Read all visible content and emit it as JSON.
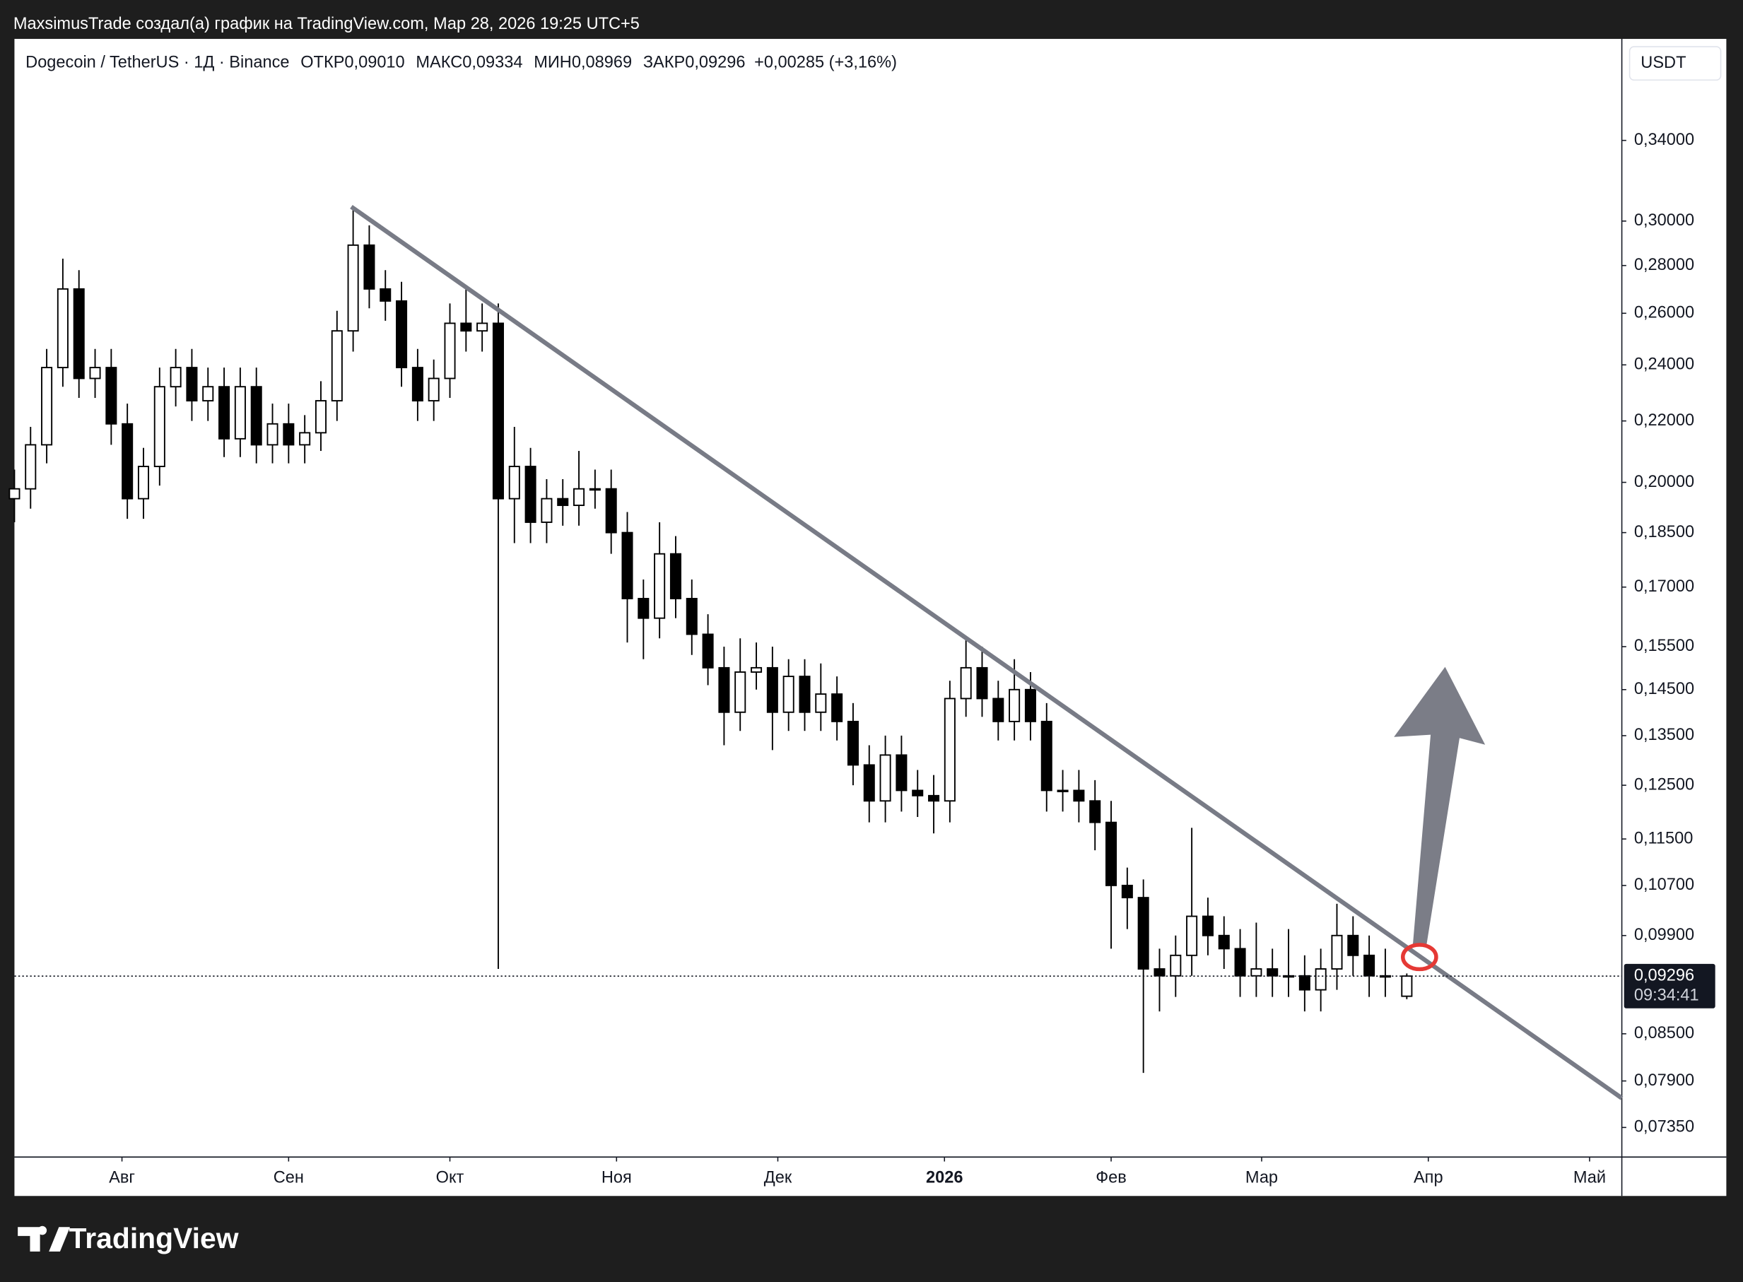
{
  "header": {
    "attribution": "MaxsimusTrade создал(а) график на TradingView.com, Мар 28, 2026 19:25 UTC+5",
    "brand": "TradingView"
  },
  "chart_data": {
    "type": "candlestick",
    "title": "Dogecoin / TetherUS · 1Д · Binance",
    "ohlc_legend": [
      {
        "label": "ОТКР",
        "value": "0,09010"
      },
      {
        "label": "МАКС",
        "value": "0,09334"
      },
      {
        "label": "МИН",
        "value": "0,08969"
      },
      {
        "label": "ЗАКР",
        "value": "0,09296"
      }
    ],
    "change": "+0,00285 (+3,16%)",
    "y_axis_unit": "USDT",
    "log_scale": true,
    "up_color": "#ffffff",
    "down_color": "#000000",
    "outline_color": "#000000",
    "xlim": [
      0,
      299
    ],
    "ylim": [
      0.0702,
      0.398
    ],
    "xticks": [
      {
        "value": 20,
        "label": "Авг"
      },
      {
        "value": 51,
        "label": "Сен"
      },
      {
        "value": 81,
        "label": "Окт"
      },
      {
        "value": 112,
        "label": "Ноя"
      },
      {
        "value": 142,
        "label": "Дек"
      },
      {
        "value": 173,
        "label": "2026"
      },
      {
        "value": 204,
        "label": "Фев"
      },
      {
        "value": 232,
        "label": "Мар"
      },
      {
        "value": 263,
        "label": "Апр"
      },
      {
        "value": 293,
        "label": "Май"
      }
    ],
    "yticks": [
      {
        "value": 0.34,
        "label": "0,34000"
      },
      {
        "value": 0.3,
        "label": "0,30000"
      },
      {
        "value": 0.28,
        "label": "0,28000"
      },
      {
        "value": 0.26,
        "label": "0,26000"
      },
      {
        "value": 0.24,
        "label": "0,24000"
      },
      {
        "value": 0.22,
        "label": "0,22000"
      },
      {
        "value": 0.2,
        "label": "0,20000"
      },
      {
        "value": 0.185,
        "label": "0,18500"
      },
      {
        "value": 0.17,
        "label": "0,17000"
      },
      {
        "value": 0.155,
        "label": "0,15500"
      },
      {
        "value": 0.145,
        "label": "0,14500"
      },
      {
        "value": 0.135,
        "label": "0,13500"
      },
      {
        "value": 0.125,
        "label": "0,12500"
      },
      {
        "value": 0.115,
        "label": "0,11500"
      },
      {
        "value": 0.107,
        "label": "0,10700"
      },
      {
        "value": 0.099,
        "label": "0,09900"
      },
      {
        "value": 0.085,
        "label": "0,08500"
      },
      {
        "value": 0.079,
        "label": "0,07900"
      },
      {
        "value": 0.0735,
        "label": "0,07350"
      }
    ],
    "x": [
      0,
      3,
      6,
      9,
      12,
      15,
      18,
      21,
      24,
      27,
      30,
      33,
      36,
      39,
      42,
      45,
      48,
      51,
      54,
      57,
      60,
      63,
      66,
      69,
      72,
      75,
      78,
      81,
      84,
      87,
      90,
      93,
      96,
      99,
      102,
      105,
      108,
      111,
      114,
      117,
      120,
      123,
      126,
      129,
      132,
      135,
      138,
      141,
      144,
      147,
      150,
      153,
      156,
      159,
      162,
      165,
      168,
      171,
      174,
      177,
      180,
      183,
      186,
      189,
      192,
      195,
      198,
      201,
      204,
      207,
      210,
      213,
      216,
      219,
      222,
      225,
      228,
      231,
      234,
      237,
      240,
      243,
      246,
      249,
      252,
      255,
      259
    ],
    "open": [
      0.195,
      0.198,
      0.212,
      0.239,
      0.27,
      0.235,
      0.239,
      0.219,
      0.195,
      0.205,
      0.232,
      0.239,
      0.227,
      0.232,
      0.214,
      0.232,
      0.212,
      0.219,
      0.212,
      0.216,
      0.227,
      0.253,
      0.289,
      0.27,
      0.265,
      0.239,
      0.227,
      0.235,
      0.256,
      0.253,
      0.256,
      0.195,
      0.205,
      0.188,
      0.195,
      0.193,
      0.198,
      0.198,
      0.185,
      0.167,
      0.162,
      0.179,
      0.167,
      0.158,
      0.15,
      0.14,
      0.149,
      0.15,
      0.14,
      0.148,
      0.14,
      0.144,
      0.138,
      0.129,
      0.122,
      0.131,
      0.124,
      0.123,
      0.122,
      0.143,
      0.15,
      0.143,
      0.138,
      0.145,
      0.138,
      0.124,
      0.124,
      0.122,
      0.118,
      0.107,
      0.105,
      0.094,
      0.093,
      0.096,
      0.102,
      0.099,
      0.097,
      0.093,
      0.094,
      0.093,
      0.093,
      0.091,
      0.094,
      0.099,
      0.096,
      0.093,
      0.0901
    ],
    "high": [
      0.204,
      0.218,
      0.246,
      0.283,
      0.278,
      0.246,
      0.246,
      0.226,
      0.211,
      0.239,
      0.246,
      0.246,
      0.239,
      0.239,
      0.239,
      0.239,
      0.226,
      0.226,
      0.222,
      0.234,
      0.261,
      0.306,
      0.298,
      0.278,
      0.273,
      0.246,
      0.242,
      0.264,
      0.27,
      0.264,
      0.264,
      0.218,
      0.211,
      0.201,
      0.201,
      0.21,
      0.204,
      0.204,
      0.191,
      0.172,
      0.188,
      0.184,
      0.172,
      0.163,
      0.155,
      0.157,
      0.156,
      0.155,
      0.152,
      0.152,
      0.151,
      0.148,
      0.142,
      0.133,
      0.135,
      0.135,
      0.128,
      0.127,
      0.147,
      0.157,
      0.155,
      0.147,
      0.152,
      0.149,
      0.142,
      0.128,
      0.128,
      0.126,
      0.122,
      0.11,
      0.108,
      0.097,
      0.099,
      0.117,
      0.105,
      0.102,
      0.1,
      0.101,
      0.097,
      0.1,
      0.096,
      0.097,
      0.104,
      0.102,
      0.099,
      0.097,
      0.09334
    ],
    "low": [
      0.188,
      0.192,
      0.206,
      0.232,
      0.228,
      0.228,
      0.212,
      0.189,
      0.189,
      0.199,
      0.225,
      0.22,
      0.22,
      0.208,
      0.208,
      0.206,
      0.206,
      0.206,
      0.206,
      0.21,
      0.22,
      0.245,
      0.262,
      0.257,
      0.232,
      0.22,
      0.22,
      0.228,
      0.245,
      0.245,
      0.094,
      0.182,
      0.182,
      0.182,
      0.187,
      0.187,
      0.192,
      0.179,
      0.156,
      0.152,
      0.157,
      0.162,
      0.153,
      0.146,
      0.133,
      0.136,
      0.145,
      0.132,
      0.136,
      0.136,
      0.136,
      0.134,
      0.125,
      0.118,
      0.118,
      0.12,
      0.119,
      0.116,
      0.118,
      0.139,
      0.139,
      0.134,
      0.134,
      0.134,
      0.12,
      0.12,
      0.118,
      0.113,
      0.097,
      0.1,
      0.08,
      0.088,
      0.09,
      0.093,
      0.096,
      0.094,
      0.09,
      0.09,
      0.09,
      0.09,
      0.088,
      0.088,
      0.091,
      0.093,
      0.09,
      0.09,
      0.08969
    ],
    "close": [
      0.198,
      0.212,
      0.239,
      0.27,
      0.235,
      0.239,
      0.219,
      0.195,
      0.205,
      0.232,
      0.239,
      0.227,
      0.232,
      0.214,
      0.232,
      0.212,
      0.219,
      0.212,
      0.216,
      0.227,
      0.253,
      0.289,
      0.27,
      0.265,
      0.239,
      0.227,
      0.235,
      0.256,
      0.253,
      0.256,
      0.195,
      0.205,
      0.188,
      0.195,
      0.193,
      0.198,
      0.198,
      0.185,
      0.167,
      0.162,
      0.179,
      0.167,
      0.158,
      0.15,
      0.14,
      0.149,
      0.15,
      0.14,
      0.148,
      0.14,
      0.144,
      0.138,
      0.129,
      0.122,
      0.131,
      0.124,
      0.123,
      0.122,
      0.143,
      0.15,
      0.143,
      0.138,
      0.145,
      0.138,
      0.124,
      0.124,
      0.122,
      0.118,
      0.107,
      0.105,
      0.094,
      0.093,
      0.096,
      0.102,
      0.099,
      0.097,
      0.093,
      0.094,
      0.093,
      0.093,
      0.091,
      0.094,
      0.099,
      0.096,
      0.093,
      0.093,
      0.09296
    ],
    "last_price_label": "0,09296",
    "countdown": "09:34:41"
  }
}
